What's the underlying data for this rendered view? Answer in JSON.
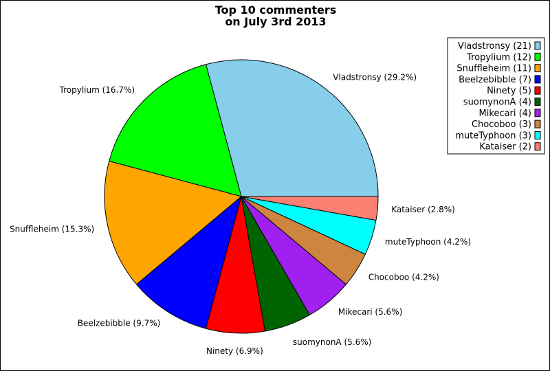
{
  "chart_data": {
    "type": "pie",
    "title": [
      "Top 10 commenters",
      "on July 3rd 2013"
    ],
    "start_angle_deg": 0,
    "direction": "counterclockwise",
    "legend_position": "top-right",
    "slices": [
      {
        "name": "Vladstronsy",
        "count": 21,
        "percent": "29.2%",
        "legend_label": "Vladstronsy (21)",
        "slice_label": "Vladstronsy (29.2%)",
        "color": "#87CEEB"
      },
      {
        "name": "Tropylium",
        "count": 12,
        "percent": "16.7%",
        "legend_label": "Tropylium (12)",
        "slice_label": "Tropylium (16.7%)",
        "color": "#00FF00"
      },
      {
        "name": "Snuffleheim",
        "count": 11,
        "percent": "15.3%",
        "legend_label": "Snuffleheim (11)",
        "slice_label": "Snuffleheim (15.3%)",
        "color": "#FFA500"
      },
      {
        "name": "Beelzebibble",
        "count": 7,
        "percent": "9.7%",
        "legend_label": "Beelzebibble (7)",
        "slice_label": "Beelzebibble (9.7%)",
        "color": "#0000FF"
      },
      {
        "name": "Ninety",
        "count": 5,
        "percent": "6.9%",
        "legend_label": "Ninety (5)",
        "slice_label": "Ninety (6.9%)",
        "color": "#FF0000"
      },
      {
        "name": "suomynonA",
        "count": 4,
        "percent": "5.6%",
        "legend_label": "suomynonA (4)",
        "slice_label": "suomynonA (5.6%)",
        "color": "#006400"
      },
      {
        "name": "Mikecari",
        "count": 4,
        "percent": "5.6%",
        "legend_label": "Mikecari (4)",
        "slice_label": "Mikecari (5.6%)",
        "color": "#A020F0"
      },
      {
        "name": "Chocoboo",
        "count": 3,
        "percent": "4.2%",
        "legend_label": "Chocoboo (3)",
        "slice_label": "Chocoboo (4.2%)",
        "color": "#CD853F"
      },
      {
        "name": "muteTyphoon",
        "count": 3,
        "percent": "4.2%",
        "legend_label": "muteTyphoon (3)",
        "slice_label": "muteTyphoon (4.2%)",
        "color": "#00FFFF"
      },
      {
        "name": "Kataiser",
        "count": 2,
        "percent": "2.8%",
        "legend_label": "Kataiser (2)",
        "slice_label": "Kataiser (2.8%)",
        "color": "#FA8072"
      }
    ]
  }
}
